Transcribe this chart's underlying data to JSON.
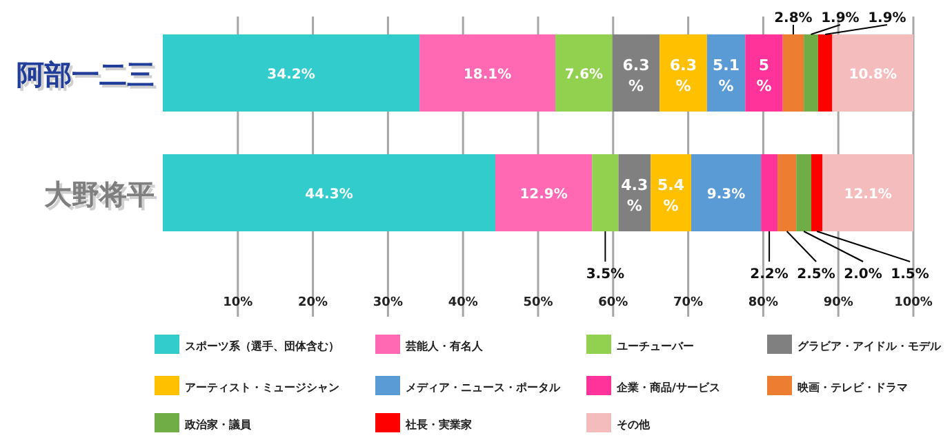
{
  "chart_data": {
    "type": "bar",
    "orientation": "horizontal",
    "stacked": true,
    "categories": [
      "阿部一二三",
      "大野将平"
    ],
    "xlim": [
      0,
      100
    ],
    "xticks": [
      {
        "value": 10,
        "label": "10%"
      },
      {
        "value": 20,
        "label": "20%"
      },
      {
        "value": 30,
        "label": "30%"
      },
      {
        "value": 40,
        "label": "40%"
      },
      {
        "value": 50,
        "label": "50%"
      },
      {
        "value": 60,
        "label": "60%"
      },
      {
        "value": 70,
        "label": "70%"
      },
      {
        "value": 80,
        "label": "80%"
      },
      {
        "value": 90,
        "label": "90%"
      },
      {
        "value": 100,
        "label": "100%"
      }
    ],
    "grid": "x",
    "legend": "bottom",
    "series": [
      {
        "name": "スポーツ系（選手、団体含む）",
        "color": "#33cccc",
        "values": [
          34.2,
          44.3
        ],
        "value_labels": [
          "34.2%",
          "44.3%"
        ]
      },
      {
        "name": "芸能人・有名人",
        "color": "#ff69b4",
        "values": [
          18.1,
          12.9
        ],
        "value_labels": [
          "18.1%",
          "12.9%"
        ]
      },
      {
        "name": "ユーチューバー",
        "color": "#92d050",
        "values": [
          7.6,
          3.5
        ],
        "value_labels": [
          "7.6%",
          "3.5%"
        ]
      },
      {
        "name": "グラビア・アイドル・モデル",
        "color": "#808080",
        "values": [
          6.3,
          4.3
        ],
        "value_labels": [
          "6.3%",
          "4.3%"
        ]
      },
      {
        "name": "アーティスト・ミュージシャン",
        "color": "#ffc000",
        "values": [
          6.3,
          5.4
        ],
        "value_labels": [
          "6.3%",
          "5.4%"
        ]
      },
      {
        "name": "メディア・ニュース・ポータル",
        "color": "#5b9bd5",
        "values": [
          5.1,
          9.3
        ],
        "value_labels": [
          "5.1%",
          "9.3%"
        ]
      },
      {
        "name": "企業・商品/サービス",
        "color": "#ff3399",
        "values": [
          5,
          2.2
        ],
        "value_labels": [
          "5%",
          "2.2%"
        ]
      },
      {
        "name": "映画・テレビ・ドラマ",
        "color": "#ed7d31",
        "values": [
          2.8,
          2.5
        ],
        "value_labels": [
          "2.8%",
          "2.5%"
        ]
      },
      {
        "name": "政治家・議員",
        "color": "#70ad47",
        "values": [
          1.9,
          2.0
        ],
        "value_labels": [
          "1.9%",
          "2.0%"
        ]
      },
      {
        "name": "社長・実業家",
        "color": "#ff0000",
        "values": [
          1.9,
          1.5
        ],
        "value_labels": [
          "1.9%",
          "1.5%"
        ]
      },
      {
        "name": "その他",
        "color": "#f4bcbc",
        "values": [
          10.8,
          12.1
        ],
        "value_labels": [
          "10.8%",
          "12.1%"
        ]
      }
    ]
  }
}
